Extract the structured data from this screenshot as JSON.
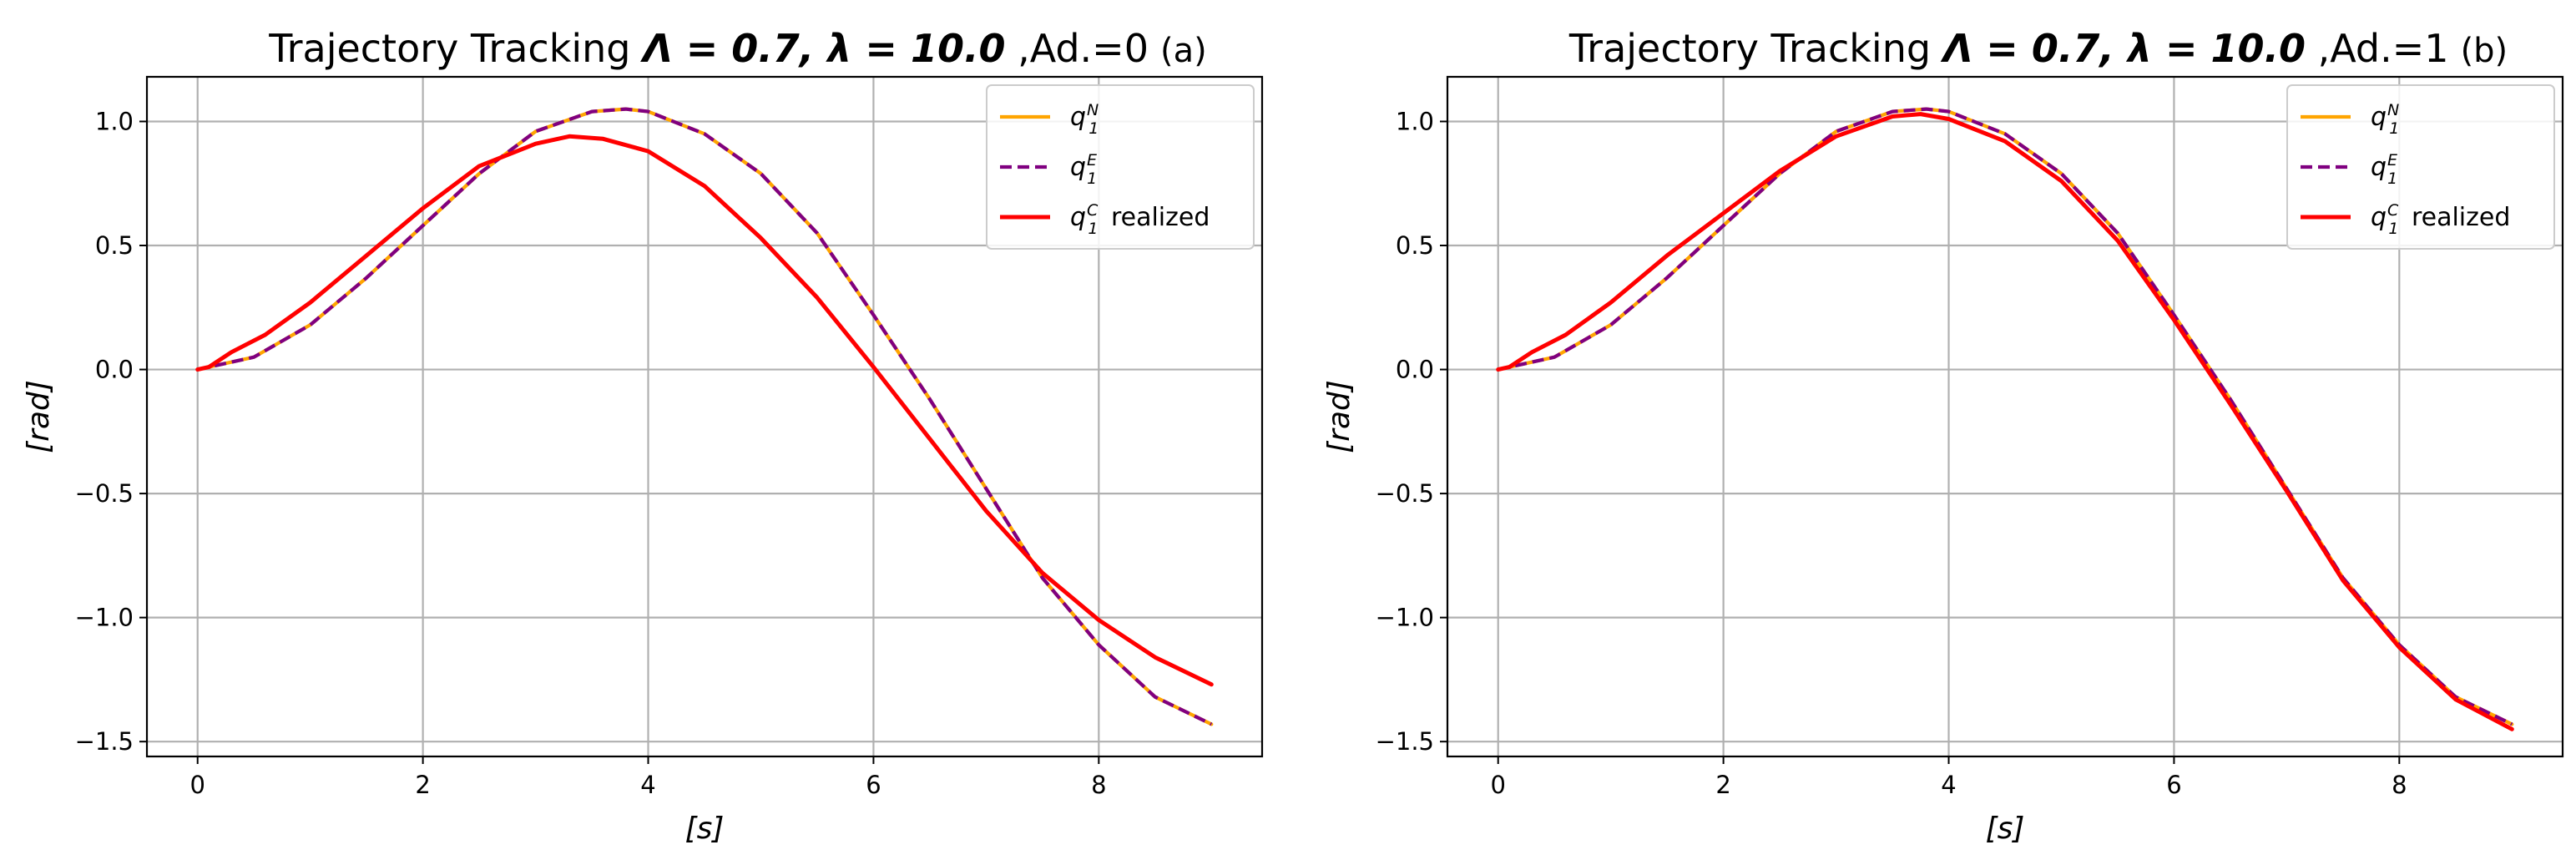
{
  "figure": {
    "colors": {
      "nominal": "#ffa500",
      "expected": "#800080",
      "realized": "#ff0000",
      "grid": "#b0b0b0",
      "frame": "#000000"
    }
  },
  "chart_data": [
    {
      "type": "line",
      "title_prefix": "Trajectory Tracking ",
      "title_math": "Λ = 0.7, λ = 10.0",
      "title_suffix": " ,Ad.=0",
      "panel_tag": "(a)",
      "xlabel": "[s]",
      "ylabel": "[rad]",
      "xlim": [
        -0.45,
        9.45
      ],
      "ylim": [
        -1.56,
        1.18
      ],
      "xticks": [
        0,
        2,
        4,
        6,
        8
      ],
      "xtick_labels": [
        "0",
        "2",
        "4",
        "6",
        "8"
      ],
      "yticks": [
        1.0,
        0.5,
        0.0,
        -0.5,
        -1.0,
        -1.5
      ],
      "ytick_labels": [
        "1.0",
        "0.5",
        "0.0",
        "−0.5",
        "−1.0",
        "−1.5"
      ],
      "grid": true,
      "legend_position": "top-right",
      "series": [
        {
          "key": "nominal",
          "legend_main": "q",
          "legend_sub": "1",
          "legend_sup": "N",
          "legend_suffix": "",
          "style": "solid",
          "x": [
            0,
            0.5,
            1.0,
            1.5,
            2.0,
            2.5,
            3.0,
            3.5,
            3.8,
            4.0,
            4.5,
            5.0,
            5.5,
            6.0,
            6.5,
            7.0,
            7.5,
            8.0,
            8.5,
            9.0
          ],
          "y": [
            0.0,
            0.05,
            0.18,
            0.37,
            0.58,
            0.79,
            0.96,
            1.04,
            1.05,
            1.04,
            0.95,
            0.79,
            0.55,
            0.22,
            -0.12,
            -0.48,
            -0.84,
            -1.11,
            -1.32,
            -1.43
          ]
        },
        {
          "key": "expected",
          "legend_main": "q",
          "legend_sub": "1",
          "legend_sup": "E",
          "legend_suffix": "",
          "style": "dashed",
          "x": [
            0,
            0.5,
            1.0,
            1.5,
            2.0,
            2.5,
            3.0,
            3.5,
            3.8,
            4.0,
            4.5,
            5.0,
            5.5,
            6.0,
            6.5,
            7.0,
            7.5,
            8.0,
            8.5,
            9.0
          ],
          "y": [
            0.0,
            0.05,
            0.18,
            0.37,
            0.58,
            0.79,
            0.96,
            1.04,
            1.05,
            1.04,
            0.95,
            0.79,
            0.55,
            0.22,
            -0.12,
            -0.48,
            -0.84,
            -1.11,
            -1.32,
            -1.43
          ]
        },
        {
          "key": "realized",
          "legend_main": "q",
          "legend_sub": "1",
          "legend_sup": "C",
          "legend_suffix": " realized",
          "style": "solid",
          "x": [
            0,
            0.1,
            0.3,
            0.6,
            1.0,
            1.5,
            2.0,
            2.5,
            3.0,
            3.3,
            3.6,
            4.0,
            4.5,
            5.0,
            5.5,
            6.0,
            6.5,
            7.0,
            7.5,
            8.0,
            8.5,
            9.0
          ],
          "y": [
            0.0,
            0.01,
            0.07,
            0.14,
            0.27,
            0.46,
            0.65,
            0.82,
            0.91,
            0.94,
            0.93,
            0.88,
            0.74,
            0.53,
            0.29,
            0.01,
            -0.28,
            -0.57,
            -0.82,
            -1.01,
            -1.16,
            -1.27
          ]
        }
      ]
    },
    {
      "type": "line",
      "title_prefix": "Trajectory Tracking ",
      "title_math": "Λ = 0.7, λ = 10.0",
      "title_suffix": " ,Ad.=1",
      "panel_tag": "(b)",
      "xlabel": "[s]",
      "ylabel": "[rad]",
      "xlim": [
        -0.45,
        9.45
      ],
      "ylim": [
        -1.56,
        1.18
      ],
      "xticks": [
        0,
        2,
        4,
        6,
        8
      ],
      "xtick_labels": [
        "0",
        "2",
        "4",
        "6",
        "8"
      ],
      "yticks": [
        1.0,
        0.5,
        0.0,
        -0.5,
        -1.0,
        -1.5
      ],
      "ytick_labels": [
        "1.0",
        "0.5",
        "0.0",
        "−0.5",
        "−1.0",
        "−1.5"
      ],
      "grid": true,
      "legend_position": "top-right",
      "series": [
        {
          "key": "nominal",
          "legend_main": "q",
          "legend_sub": "1",
          "legend_sup": "N",
          "legend_suffix": "",
          "style": "solid",
          "x": [
            0,
            0.5,
            1.0,
            1.5,
            2.0,
            2.5,
            3.0,
            3.5,
            3.8,
            4.0,
            4.5,
            5.0,
            5.5,
            6.0,
            6.5,
            7.0,
            7.5,
            8.0,
            8.5,
            9.0
          ],
          "y": [
            0.0,
            0.05,
            0.18,
            0.37,
            0.58,
            0.79,
            0.96,
            1.04,
            1.05,
            1.04,
            0.95,
            0.79,
            0.55,
            0.22,
            -0.12,
            -0.48,
            -0.84,
            -1.11,
            -1.32,
            -1.43
          ]
        },
        {
          "key": "expected",
          "legend_main": "q",
          "legend_sub": "1",
          "legend_sup": "E",
          "legend_suffix": "",
          "style": "dashed",
          "x": [
            0,
            0.5,
            1.0,
            1.5,
            2.0,
            2.5,
            3.0,
            3.5,
            3.8,
            4.0,
            4.5,
            5.0,
            5.5,
            6.0,
            6.5,
            7.0,
            7.5,
            8.0,
            8.5,
            9.0
          ],
          "y": [
            0.0,
            0.05,
            0.18,
            0.37,
            0.58,
            0.79,
            0.96,
            1.04,
            1.05,
            1.04,
            0.95,
            0.79,
            0.55,
            0.22,
            -0.12,
            -0.48,
            -0.84,
            -1.11,
            -1.32,
            -1.43
          ]
        },
        {
          "key": "realized",
          "legend_main": "q",
          "legend_sub": "1",
          "legend_sup": "C",
          "legend_suffix": " realized",
          "style": "solid",
          "x": [
            0,
            0.1,
            0.3,
            0.6,
            1.0,
            1.5,
            2.0,
            2.5,
            3.0,
            3.5,
            3.75,
            4.0,
            4.5,
            5.0,
            5.5,
            6.0,
            6.5,
            7.0,
            7.5,
            8.0,
            8.5,
            9.0
          ],
          "y": [
            0.0,
            0.01,
            0.07,
            0.14,
            0.27,
            0.46,
            0.63,
            0.8,
            0.94,
            1.02,
            1.03,
            1.01,
            0.92,
            0.76,
            0.52,
            0.2,
            -0.14,
            -0.49,
            -0.85,
            -1.12,
            -1.33,
            -1.45
          ]
        }
      ]
    }
  ]
}
